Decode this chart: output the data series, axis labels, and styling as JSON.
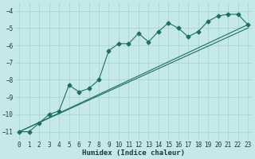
{
  "xlabel": "Humidex (Indice chaleur)",
  "bg_color": "#c5e8e8",
  "grid_color": "#aad4d4",
  "line_color": "#1a7068",
  "xlim": [
    -0.5,
    23.5
  ],
  "ylim": [
    -11.5,
    -3.5
  ],
  "yticks": [
    -11,
    -10,
    -9,
    -8,
    -7,
    -6,
    -5,
    -4
  ],
  "xticks": [
    0,
    1,
    2,
    3,
    4,
    5,
    6,
    7,
    8,
    9,
    10,
    11,
    12,
    13,
    14,
    15,
    16,
    17,
    18,
    19,
    20,
    21,
    22,
    23
  ],
  "curve1_x": [
    0,
    1,
    2,
    3,
    4,
    5,
    6,
    7,
    8,
    9,
    10,
    11,
    12,
    13,
    14,
    15,
    16,
    17,
    18,
    19,
    20,
    21,
    22,
    23
  ],
  "curve1_y": [
    -11.0,
    -11.0,
    -10.5,
    -10.0,
    -9.8,
    -8.3,
    -8.7,
    -8.5,
    -8.0,
    -6.3,
    -5.9,
    -5.9,
    -5.3,
    -5.8,
    -5.2,
    -4.7,
    -5.0,
    -5.5,
    -5.2,
    -4.6,
    -4.3,
    -4.2,
    -4.2,
    -4.8
  ],
  "curve2_x": [
    0,
    23
  ],
  "curve2_y": [
    -11.0,
    -4.8
  ],
  "curve3_x": [
    0,
    23
  ],
  "curve3_y": [
    -11.0,
    -5.0
  ]
}
